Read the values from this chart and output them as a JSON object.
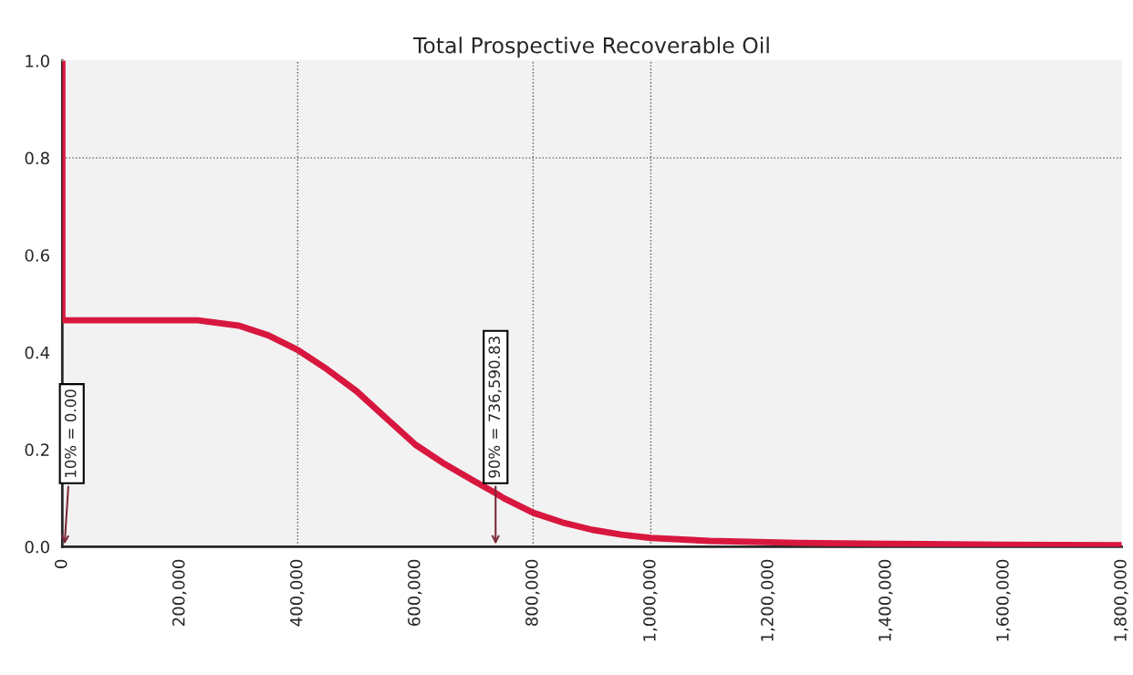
{
  "chart_data": {
    "type": "line",
    "title": "Total Prospective Recoverable Oil",
    "x": [
      0,
      0,
      100000,
      230000,
      300000,
      350000,
      400000,
      450000,
      500000,
      550000,
      600000,
      650000,
      700000,
      736590.83,
      750000,
      800000,
      850000,
      900000,
      950000,
      1000000,
      1100000,
      1250000,
      1400000,
      1600000,
      1800000
    ],
    "series": [
      {
        "color": "#d8173f",
        "values": [
          1.0,
          0.466,
          0.466,
          0.466,
          0.455,
          0.435,
          0.405,
          0.365,
          0.32,
          0.265,
          0.21,
          0.17,
          0.135,
          0.11,
          0.1,
          0.07,
          0.05,
          0.035,
          0.025,
          0.018,
          0.012,
          0.008,
          0.006,
          0.004,
          0.003
        ]
      }
    ],
    "xlim": [
      0,
      1800000
    ],
    "xticks": [
      {
        "value": 0,
        "label": "0"
      },
      {
        "value": 200000,
        "label": "200,000"
      },
      {
        "value": 400000,
        "label": "400,000"
      },
      {
        "value": 600000,
        "label": "600,000"
      },
      {
        "value": 800000,
        "label": "800,000"
      },
      {
        "value": 1000000,
        "label": "1,000,000"
      },
      {
        "value": 1200000,
        "label": "1,200,000"
      },
      {
        "value": 1400000,
        "label": "1,400,000"
      },
      {
        "value": 1600000,
        "label": "1,600,000"
      },
      {
        "value": 1800000,
        "label": "1,800,000"
      }
    ],
    "ylim": [
      0,
      1.0
    ],
    "yticks": [
      {
        "value": 0,
        "label": "0.0"
      },
      {
        "value": 0.2,
        "label": "0.2"
      },
      {
        "value": 0.4,
        "label": "0.4"
      },
      {
        "value": 0.6,
        "label": "0.6"
      },
      {
        "value": 0.8,
        "label": "0.8"
      },
      {
        "value": 1.0,
        "label": "1.0"
      }
    ],
    "grid": false,
    "marker": "none",
    "line_style": "solid",
    "ref_lines": [
      {
        "axis": "x",
        "value": 400000,
        "line_style": "dotted",
        "color": "#555555"
      },
      {
        "axis": "x",
        "value": 800000,
        "line_style": "dotted",
        "color": "#555555"
      },
      {
        "axis": "x",
        "value": 1000000,
        "line_style": "dotted",
        "color": "#555555"
      },
      {
        "axis": "y",
        "value": 0.8,
        "line_style": "dotted",
        "color": "#555555"
      }
    ],
    "annotations": [
      "10% = 0.00",
      "90% = 736,590.83"
    ]
  }
}
